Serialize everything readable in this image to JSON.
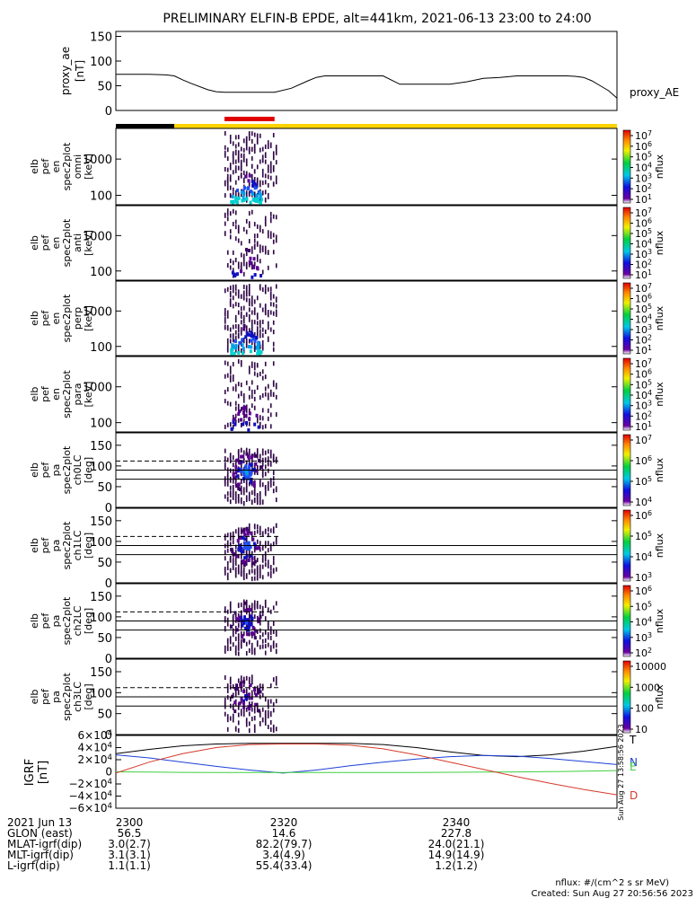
{
  "title": "PRELIMINARY ELFIN-B EPDE, alt=441km, 2021-06-13 23:00 to 24:00",
  "chart_data": [
    {
      "type": "line",
      "id": "proxy_ae",
      "ylabel": [
        "proxy_ae",
        "[nT]"
      ],
      "legend": "proxy_AE",
      "yticks": [
        "150",
        "100",
        "50",
        "0"
      ],
      "ylim": [
        0,
        160
      ],
      "x_minutes": [
        0,
        2,
        4,
        6,
        7,
        8,
        9,
        11,
        12,
        13,
        14,
        15,
        17,
        19,
        21,
        23,
        24,
        25,
        26,
        28,
        30,
        32,
        34,
        36,
        38,
        40,
        42,
        44,
        46,
        48,
        50,
        52,
        54,
        55,
        56,
        57,
        58,
        59,
        60
      ],
      "values": [
        73,
        73,
        73,
        72,
        70,
        62,
        55,
        42,
        38,
        37,
        37,
        37,
        37,
        37,
        45,
        60,
        67,
        70,
        70,
        70,
        70,
        70,
        53,
        53,
        53,
        53,
        58,
        65,
        67,
        70,
        70,
        70,
        70,
        69,
        67,
        60,
        50,
        40,
        25
      ]
    },
    {
      "type": "heatmap",
      "id": "spec_omni",
      "ylabel": [
        "elb",
        "pef",
        "en",
        "spec2plot",
        "omni",
        "[keV]"
      ],
      "yticks": [
        "1000",
        "100"
      ],
      "colorbar_ticks": [
        "10^7",
        "10^6",
        "10^5",
        "10^4",
        "10^3",
        "10^2",
        "10^1"
      ],
      "colorbar_label": "nflux"
    },
    {
      "type": "heatmap",
      "id": "spec_anti",
      "ylabel": [
        "elb",
        "pef",
        "en",
        "spec2plot",
        "anti",
        "[keV]"
      ],
      "yticks": [
        "1000",
        "100"
      ],
      "colorbar_ticks": [
        "10^7",
        "10^6",
        "10^5",
        "10^4",
        "10^3",
        "10^2",
        "10^1"
      ],
      "colorbar_label": "nflux"
    },
    {
      "type": "heatmap",
      "id": "spec_perp",
      "ylabel": [
        "elb",
        "pef",
        "en",
        "spec2plot",
        "perp",
        "[keV]"
      ],
      "yticks": [
        "1000",
        "100"
      ],
      "colorbar_ticks": [
        "10^7",
        "10^6",
        "10^5",
        "10^4",
        "10^3",
        "10^2",
        "10^1"
      ],
      "colorbar_label": "nflux"
    },
    {
      "type": "heatmap",
      "id": "spec_para",
      "ylabel": [
        "elb",
        "pef",
        "en",
        "spec2plot",
        "para",
        "[keV]"
      ],
      "yticks": [
        "1000",
        "100"
      ],
      "colorbar_ticks": [
        "10^7",
        "10^6",
        "10^5",
        "10^4",
        "10^3",
        "10^2",
        "10^1"
      ],
      "colorbar_label": "nflux"
    },
    {
      "type": "heatmap",
      "id": "pa_ch0",
      "ylabel": [
        "elb",
        "pef",
        "pa",
        "spec2plot",
        "ch0LC",
        "[deg]"
      ],
      "yticks": [
        "150",
        "100",
        "50",
        "0"
      ],
      "colorbar_ticks": [
        "10^7",
        "10^6",
        "10^5",
        "10^4"
      ],
      "colorbar_label": "nflux"
    },
    {
      "type": "heatmap",
      "id": "pa_ch1",
      "ylabel": [
        "elb",
        "pef",
        "pa",
        "spec2plot",
        "ch1LC",
        "[deg]"
      ],
      "yticks": [
        "150",
        "100",
        "50",
        "0"
      ],
      "colorbar_ticks": [
        "10^6",
        "10^5",
        "10^4",
        "10^3"
      ],
      "colorbar_label": "nflux"
    },
    {
      "type": "heatmap",
      "id": "pa_ch2",
      "ylabel": [
        "elb",
        "pef",
        "pa",
        "spec2plot",
        "ch2LC",
        "[deg]"
      ],
      "yticks": [
        "150",
        "100",
        "50",
        "0"
      ],
      "colorbar_ticks": [
        "10^6",
        "10^5",
        "10^4",
        "10^3",
        "10^2"
      ],
      "colorbar_label": "nflux"
    },
    {
      "type": "heatmap",
      "id": "pa_ch3",
      "ylabel": [
        "elb",
        "pef",
        "pa",
        "spec2plot",
        "ch3LC",
        "[deg]"
      ],
      "yticks": [
        "150",
        "100",
        "50",
        "0"
      ],
      "colorbar_ticks": [
        "10000",
        "1000",
        "100",
        "10"
      ],
      "colorbar_label": "nflux"
    },
    {
      "type": "line",
      "id": "igrf",
      "ylabel": [
        "IGRF",
        "[nT]"
      ],
      "yticks": [
        "6×10^4",
        "4×10^4",
        "2×10^4",
        "0",
        "−2×10^4",
        "−4×10^4",
        "−6×10^4"
      ],
      "ylim": [
        -60000,
        60000
      ],
      "x_minutes": [
        0,
        4,
        8,
        12,
        16,
        20,
        24,
        28,
        32,
        36,
        40,
        44,
        48,
        52,
        56,
        60
      ],
      "series": [
        {
          "name": "T",
          "color": "#000000",
          "values": [
            30000,
            37000,
            43000,
            46000,
            47000,
            47000,
            47000,
            47000,
            45000,
            40000,
            33000,
            27000,
            25000,
            28000,
            34000,
            42000
          ]
        },
        {
          "name": "N",
          "color": "#1c3fd6",
          "values": [
            28000,
            23000,
            16000,
            9000,
            3000,
            -2000,
            3000,
            10000,
            16000,
            21000,
            25000,
            27000,
            26000,
            22000,
            17000,
            12000
          ]
        },
        {
          "name": "E",
          "color": "#3fcf3f",
          "values": [
            0,
            -500,
            -900,
            -1000,
            -1100,
            -1200,
            -1200,
            -1200,
            -1100,
            -1000,
            -800,
            -500,
            -200,
            400,
            1000,
            2000
          ]
        },
        {
          "name": "D",
          "color": "#d63a2a",
          "values": [
            -2000,
            16000,
            30000,
            40000,
            45000,
            46000,
            46000,
            44000,
            38000,
            28000,
            16000,
            4000,
            -8000,
            -19000,
            -29000,
            -38000
          ]
        }
      ]
    }
  ],
  "flag_bar": {
    "segments": [
      {
        "from_min": 0,
        "to_min": 7,
        "color": "#000000"
      },
      {
        "from_min": 7,
        "to_min": 60,
        "color": "#ffd400"
      }
    ],
    "science_zone": {
      "from_min": 13,
      "to_min": 19,
      "color": "#e00000"
    }
  },
  "burst": {
    "from_min": 13,
    "to_min": 19.5,
    "peak_min": 15.5
  },
  "lc_lines_deg": {
    "solid": [
      90,
      68
    ],
    "dashed": 112
  },
  "ephemeris": {
    "rows": [
      {
        "label": "2021 Jun 13",
        "values": [
          "2300",
          "2320",
          "2340"
        ]
      },
      {
        "label": "GLON (east)",
        "values": [
          "56.5",
          "14.6",
          "227.8"
        ]
      },
      {
        "label": "MLAT-igrf(dip)",
        "values": [
          "3.0(2.7)",
          "82.2(79.7)",
          "24.0(21.1)"
        ]
      },
      {
        "label": "MLT-igrf(dip)",
        "values": [
          "3.1(3.1)",
          "3.4(4.9)",
          "14.9(14.9)"
        ]
      },
      {
        "label": "L-igrf(dip)",
        "values": [
          "1.1(1.1)",
          "55.4(33.4)",
          "1.2(1.2)"
        ]
      }
    ]
  },
  "side_stamp": "Sun Aug 27 13:58:56 2023",
  "footer": {
    "units": "nflux: #/(cm^2 s sr MeV)",
    "created": "Created: Sun Aug 27 20:56:56 2023"
  }
}
